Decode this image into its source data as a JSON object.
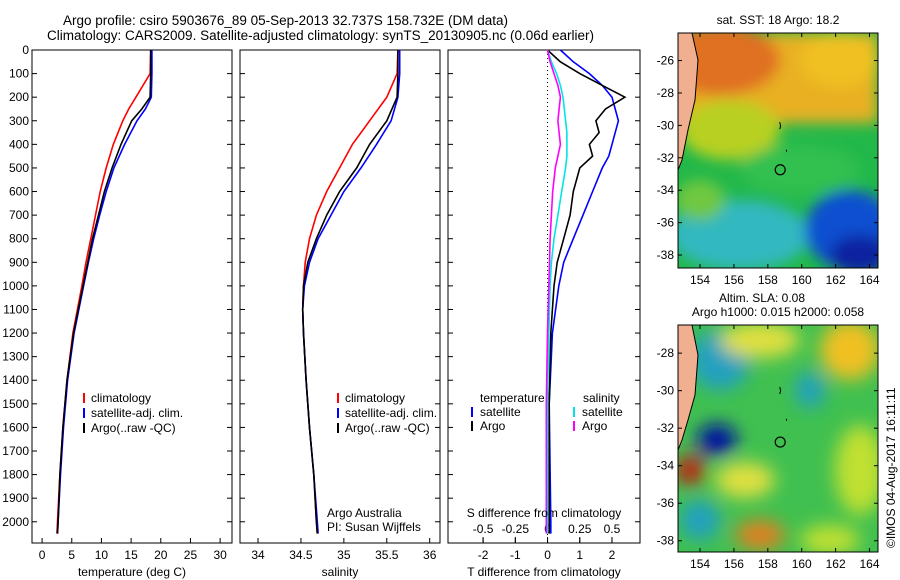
{
  "title": {
    "line1": "Argo profile: csiro 5903676_89 05-Sep-2013 32.737S 158.732E (DM data)",
    "line2": "Climatology: CARS2009. Satellite-adjusted climatology: synTS_20130905.nc (0.06d earlier)"
  },
  "credit": "©IMOS 04-Aug-2017 16:11:11",
  "colors": {
    "climatology": "#ff0000",
    "satellite": "#0000ff",
    "argo": "#000000",
    "s_satellite": "#00e5e5",
    "s_argo": "#ff00ff"
  },
  "chart_data": [
    {
      "type": "line",
      "id": "temperature",
      "xlabel": "temperature (deg C)",
      "ylabel": "",
      "xlim": [
        -1.7,
        32
      ],
      "ylim": [
        0,
        2090
      ],
      "xticks": [
        0,
        5,
        10,
        15,
        20,
        25,
        30
      ],
      "yticks": [
        0,
        100,
        200,
        300,
        400,
        500,
        600,
        700,
        800,
        900,
        1000,
        1100,
        1200,
        1300,
        1400,
        1500,
        1600,
        1700,
        1800,
        1900,
        2000
      ],
      "legend": [
        "climatology",
        "satellite-adj. clim.",
        "Argo(..raw -QC)"
      ],
      "depth": [
        0,
        100,
        200,
        250,
        300,
        400,
        500,
        600,
        700,
        800,
        900,
        1000,
        1200,
        1400,
        1600,
        1800,
        2000,
        2050
      ],
      "series": [
        {
          "name": "climatology",
          "color": "#ff0000",
          "values": [
            18.3,
            18.2,
            15.8,
            14.6,
            13.6,
            12.0,
            10.8,
            9.8,
            9.0,
            8.2,
            7.4,
            6.7,
            5.2,
            4.2,
            3.5,
            3.0,
            2.6,
            2.5
          ]
        },
        {
          "name": "satellite-adj. clim.",
          "color": "#0000ff",
          "values": [
            18.5,
            18.5,
            18.4,
            17.4,
            16.0,
            13.9,
            12.1,
            10.8,
            9.7,
            8.7,
            7.8,
            7.0,
            5.4,
            4.3,
            3.6,
            3.1,
            2.7,
            2.6
          ]
        },
        {
          "name": "Argo(..raw -QC)",
          "color": "#000000",
          "values": [
            18.3,
            18.3,
            18.2,
            16.8,
            15.1,
            13.3,
            11.8,
            10.5,
            9.5,
            8.5,
            7.7,
            6.9,
            5.3,
            4.2,
            3.5,
            3.0,
            2.7,
            2.6
          ]
        }
      ]
    },
    {
      "type": "line",
      "id": "salinity",
      "xlabel": "salinity",
      "xlim": [
        33.79,
        36.12
      ],
      "ylim": [
        0,
        2090
      ],
      "xticks": [
        34,
        34.5,
        35,
        35.5,
        36
      ],
      "legend": [
        "climatology",
        "satellite-adj. clim.",
        "Argo(..raw -QC)"
      ],
      "annotation": [
        "Argo Australia",
        "PI: Susan Wijffels"
      ],
      "depth": [
        0,
        100,
        200,
        300,
        400,
        500,
        600,
        700,
        800,
        900,
        1000,
        1100,
        1200,
        1400,
        1600,
        1800,
        2000,
        2050
      ],
      "series": [
        {
          "name": "climatology",
          "color": "#ff0000",
          "values": [
            35.63,
            35.62,
            35.5,
            35.3,
            35.1,
            34.95,
            34.8,
            34.68,
            34.6,
            34.55,
            34.53,
            34.52,
            34.53,
            34.56,
            34.6,
            34.65,
            34.68,
            34.69
          ]
        },
        {
          "name": "satellite-adj. clim.",
          "color": "#0000ff",
          "values": [
            35.65,
            35.65,
            35.63,
            35.55,
            35.38,
            35.2,
            35.0,
            34.85,
            34.7,
            34.6,
            34.54,
            34.52,
            34.53,
            34.56,
            34.6,
            34.65,
            34.69,
            34.7
          ]
        },
        {
          "name": "Argo(..raw -QC)",
          "color": "#000000",
          "values": [
            35.63,
            35.63,
            35.62,
            35.5,
            35.3,
            35.15,
            34.95,
            34.8,
            34.68,
            34.58,
            34.53,
            34.52,
            34.53,
            34.56,
            34.6,
            34.65,
            34.68,
            34.69
          ]
        }
      ]
    },
    {
      "type": "line",
      "id": "difference",
      "xlabel": "T difference from climatology",
      "xlabel2": "S difference from climatology",
      "xlim": [
        -3.09,
        2.87
      ],
      "ylim": [
        0,
        2090
      ],
      "xticks": [
        -2,
        -1,
        0,
        1,
        2
      ],
      "xticks_s": [
        -0.5,
        -0.25,
        0,
        0.25,
        0.5
      ],
      "s_scale": 4,
      "legend_t_title": "temperature",
      "legend_s_title": "salinity",
      "legend": [
        "satellite",
        "Argo",
        "satellite",
        "Argo"
      ],
      "depth": [
        0,
        50,
        100,
        150,
        200,
        250,
        300,
        350,
        400,
        450,
        500,
        600,
        700,
        800,
        900,
        1000,
        1200,
        1500,
        2000,
        2050
      ],
      "series": [
        {
          "name": "T satellite",
          "color": "#0000ff",
          "values": [
            0.4,
            0.8,
            1.3,
            1.7,
            2.0,
            2.1,
            2.2,
            2.1,
            2.0,
            1.9,
            1.7,
            1.4,
            1.1,
            0.8,
            0.5,
            0.35,
            0.15,
            0.05,
            0.1,
            0.1
          ]
        },
        {
          "name": "T Argo",
          "color": "#000000",
          "values": [
            0.0,
            0.4,
            1.0,
            1.7,
            2.4,
            1.8,
            1.5,
            1.6,
            1.3,
            1.4,
            1.0,
            0.8,
            0.7,
            0.5,
            0.3,
            0.2,
            0.1,
            0.05,
            0.05,
            0.05
          ]
        },
        {
          "name": "S satellite",
          "color": "#00e5e5",
          "values": [
            0.0,
            0.03,
            0.07,
            0.1,
            0.12,
            0.13,
            0.14,
            0.15,
            0.15,
            0.15,
            0.14,
            0.11,
            0.08,
            0.05,
            0.03,
            0.02,
            0.01,
            0.0,
            0.0,
            0.0
          ]
        },
        {
          "name": "S Argo",
          "color": "#ff00ff",
          "values": [
            0.0,
            0.02,
            0.05,
            0.08,
            0.1,
            0.09,
            0.08,
            0.09,
            0.1,
            0.08,
            0.06,
            0.04,
            0.03,
            0.02,
            0.015,
            0.01,
            0.0,
            -0.01,
            -0.01,
            -0.01
          ]
        }
      ]
    },
    {
      "type": "heatmap",
      "id": "sst-map",
      "title": "sat. SST: 18 Argo: 18.2",
      "xlim": [
        152.7,
        164.5
      ],
      "ylim": [
        -38.8,
        -24.3
      ],
      "xticks": [
        154,
        156,
        158,
        160,
        162,
        164
      ],
      "yticks": [
        -26,
        -28,
        -30,
        -32,
        -34,
        -36,
        -38
      ],
      "profile_location": [
        158.73,
        -32.74
      ]
    },
    {
      "type": "heatmap",
      "id": "sla-map",
      "title": "Altim. SLA: 0.08",
      "title2": "Argo h1000: 0.015 h2000: 0.058",
      "xlim": [
        152.7,
        164.5
      ],
      "ylim": [
        -38.6,
        -26.5
      ],
      "xticks": [
        154,
        156,
        158,
        160,
        162,
        164
      ],
      "yticks": [
        -28,
        -30,
        -32,
        -34,
        -36,
        -38
      ],
      "profile_location": [
        158.73,
        -32.74
      ]
    }
  ]
}
